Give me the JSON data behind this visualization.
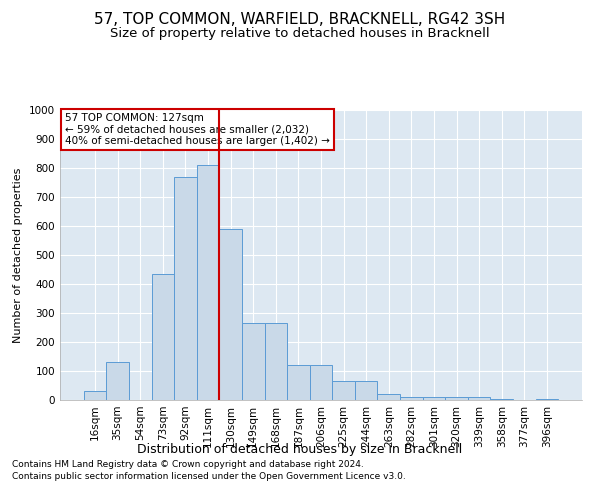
{
  "title": "57, TOP COMMON, WARFIELD, BRACKNELL, RG42 3SH",
  "subtitle": "Size of property relative to detached houses in Bracknell",
  "xlabel": "Distribution of detached houses by size in Bracknell",
  "ylabel": "Number of detached properties",
  "footnote1": "Contains HM Land Registry data © Crown copyright and database right 2024.",
  "footnote2": "Contains public sector information licensed under the Open Government Licence v3.0.",
  "annotation_line1": "57 TOP COMMON: 127sqm",
  "annotation_line2": "← 59% of detached houses are smaller (2,032)",
  "annotation_line3": "40% of semi-detached houses are larger (1,402) →",
  "bar_labels": [
    "16sqm",
    "35sqm",
    "54sqm",
    "73sqm",
    "92sqm",
    "111sqm",
    "130sqm",
    "149sqm",
    "168sqm",
    "187sqm",
    "206sqm",
    "225sqm",
    "244sqm",
    "263sqm",
    "282sqm",
    "301sqm",
    "320sqm",
    "339sqm",
    "358sqm",
    "377sqm",
    "396sqm"
  ],
  "bar_values": [
    30,
    130,
    0,
    435,
    770,
    810,
    590,
    265,
    265,
    120,
    120,
    65,
    65,
    20,
    10,
    10,
    10,
    10,
    5,
    0,
    5
  ],
  "bar_color": "#c9d9e8",
  "bar_edge_color": "#5b9bd5",
  "vline_color": "#cc0000",
  "annotation_box_color": "#cc0000",
  "ylim": [
    0,
    1000
  ],
  "yticks": [
    0,
    100,
    200,
    300,
    400,
    500,
    600,
    700,
    800,
    900,
    1000
  ],
  "plot_background": "#dde8f2",
  "title_fontsize": 11,
  "subtitle_fontsize": 9.5,
  "xlabel_fontsize": 9,
  "ylabel_fontsize": 8,
  "tick_fontsize": 7.5,
  "footnote_fontsize": 6.5,
  "annot_fontsize": 7.5
}
